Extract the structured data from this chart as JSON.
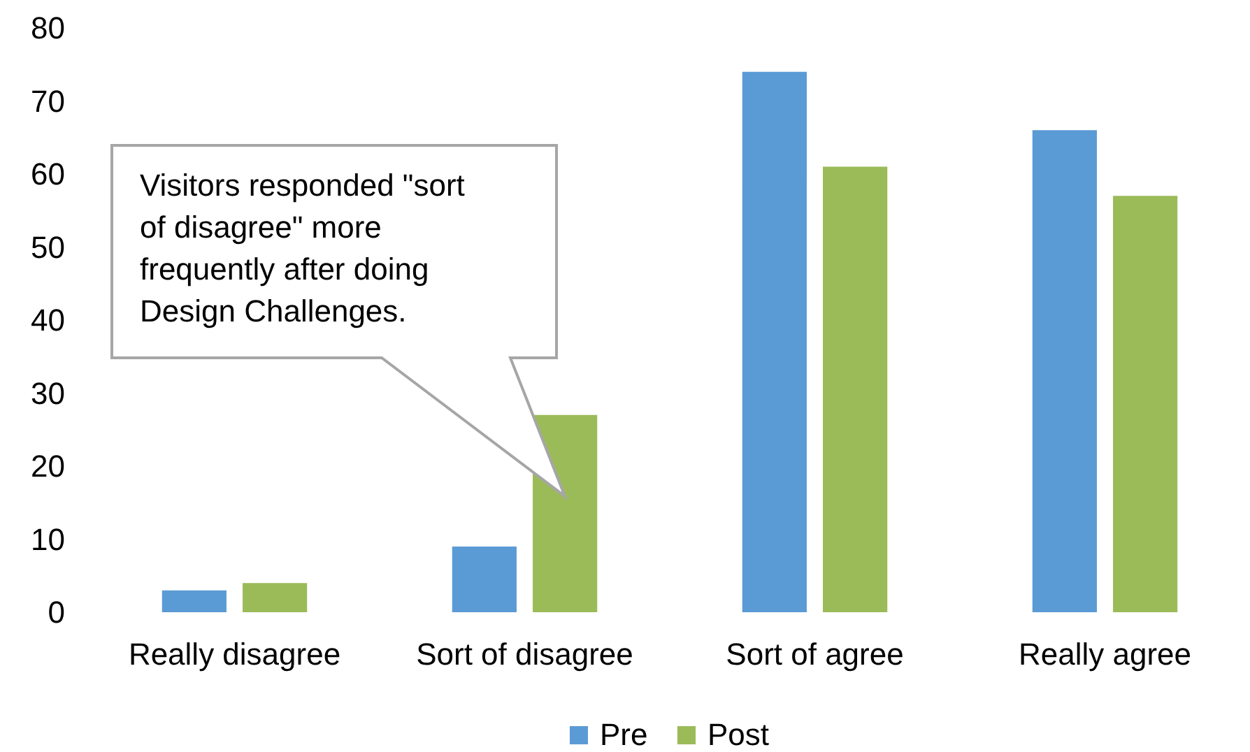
{
  "chart_data": {
    "type": "bar",
    "categories": [
      "Really disagree",
      "Sort of disagree",
      "Sort of agree",
      "Really agree"
    ],
    "series": [
      {
        "name": "Pre",
        "color": "#5b9bd5",
        "values": [
          3,
          9,
          74,
          66
        ]
      },
      {
        "name": "Post",
        "color": "#9bbb59",
        "values": [
          4,
          27,
          61,
          57
        ]
      }
    ],
    "ylim": [
      0,
      80
    ],
    "yticks": [
      0,
      10,
      20,
      30,
      40,
      50,
      60,
      70,
      80
    ],
    "legend": "bottom",
    "annotations": [
      "Visitors responded \"sort of disagree\" more frequently after doing Design Challenges."
    ]
  }
}
